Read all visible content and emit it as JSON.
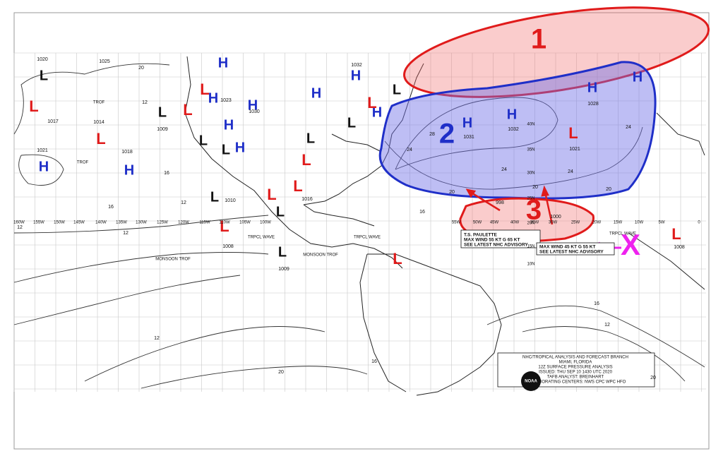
{
  "region_labels": {
    "region_1": "1",
    "region_2": "2",
    "region_3": "3",
    "disturbance": "X"
  },
  "highs": [
    "H",
    "H",
    "H",
    "H",
    "H",
    "H",
    "H",
    "H",
    "H",
    "H",
    "H",
    "H",
    "H",
    "H"
  ],
  "lows_red": [
    "L",
    "L",
    "L",
    "L",
    "L",
    "L",
    "L",
    "L",
    "L",
    "L",
    "L",
    "L"
  ],
  "lows_black": [
    "L",
    "L",
    "L",
    "L",
    "L",
    "L",
    "L",
    "L",
    "L",
    "L"
  ],
  "pressures": [
    1020,
    1025,
    1017,
    1014,
    1021,
    1018,
    1009,
    1010,
    1008,
    1009,
    1032,
    1023,
    1030,
    1028,
    1032,
    1031,
    1021,
    1016,
    998,
    1000,
    1008
  ],
  "isobar_labels": [
    20,
    12,
    16,
    16,
    12,
    12,
    24,
    24,
    24,
    24,
    28,
    20,
    20,
    20,
    16,
    16,
    12,
    16,
    20,
    20,
    12,
    12
  ],
  "longitudes": [
    "160W",
    "155W",
    "150W",
    "145W",
    "140W",
    "135W",
    "130W",
    "125W",
    "120W",
    "115W",
    "110W",
    "105W",
    "100W",
    "55W",
    "50W",
    "45W",
    "40W",
    "35W",
    "30W",
    "25W",
    "20W",
    "15W",
    "10W",
    "5W",
    "0"
  ],
  "latitudes": [
    "40N",
    "35N",
    "30N",
    "25N",
    "20N",
    "15N",
    "10N"
  ],
  "feature_labels": [
    "TROF",
    "TROF",
    "MONSOON TROF",
    "MONSOON TROF",
    "TRPCL WAVE",
    "TRPCL WAVE",
    "TRPCL WAVE"
  ],
  "advisories": [
    [
      "T.S. PAULETTE",
      "MAX WIND 55 KT G 65 KT",
      "SEE LATEST NHC ADVISORY"
    ],
    [
      "MAX WIND 45 KT G 55 KT",
      "SEE LATEST NHC ADVISORY"
    ]
  ],
  "footer": [
    "NHC/TROPICAL ANALYSIS AND FORECAST BRANCH",
    "MIAMI, FLORIDA",
    "12Z SURFACE PRESSURE ANALYSIS",
    "ISSUED: THU SEP 10 1430 UTC 2020",
    "TAFB ANALYST: BREINHART",
    "COLLABORATING CENTERS: NWS CPC WPC HFO"
  ],
  "logo": "NOAA"
}
